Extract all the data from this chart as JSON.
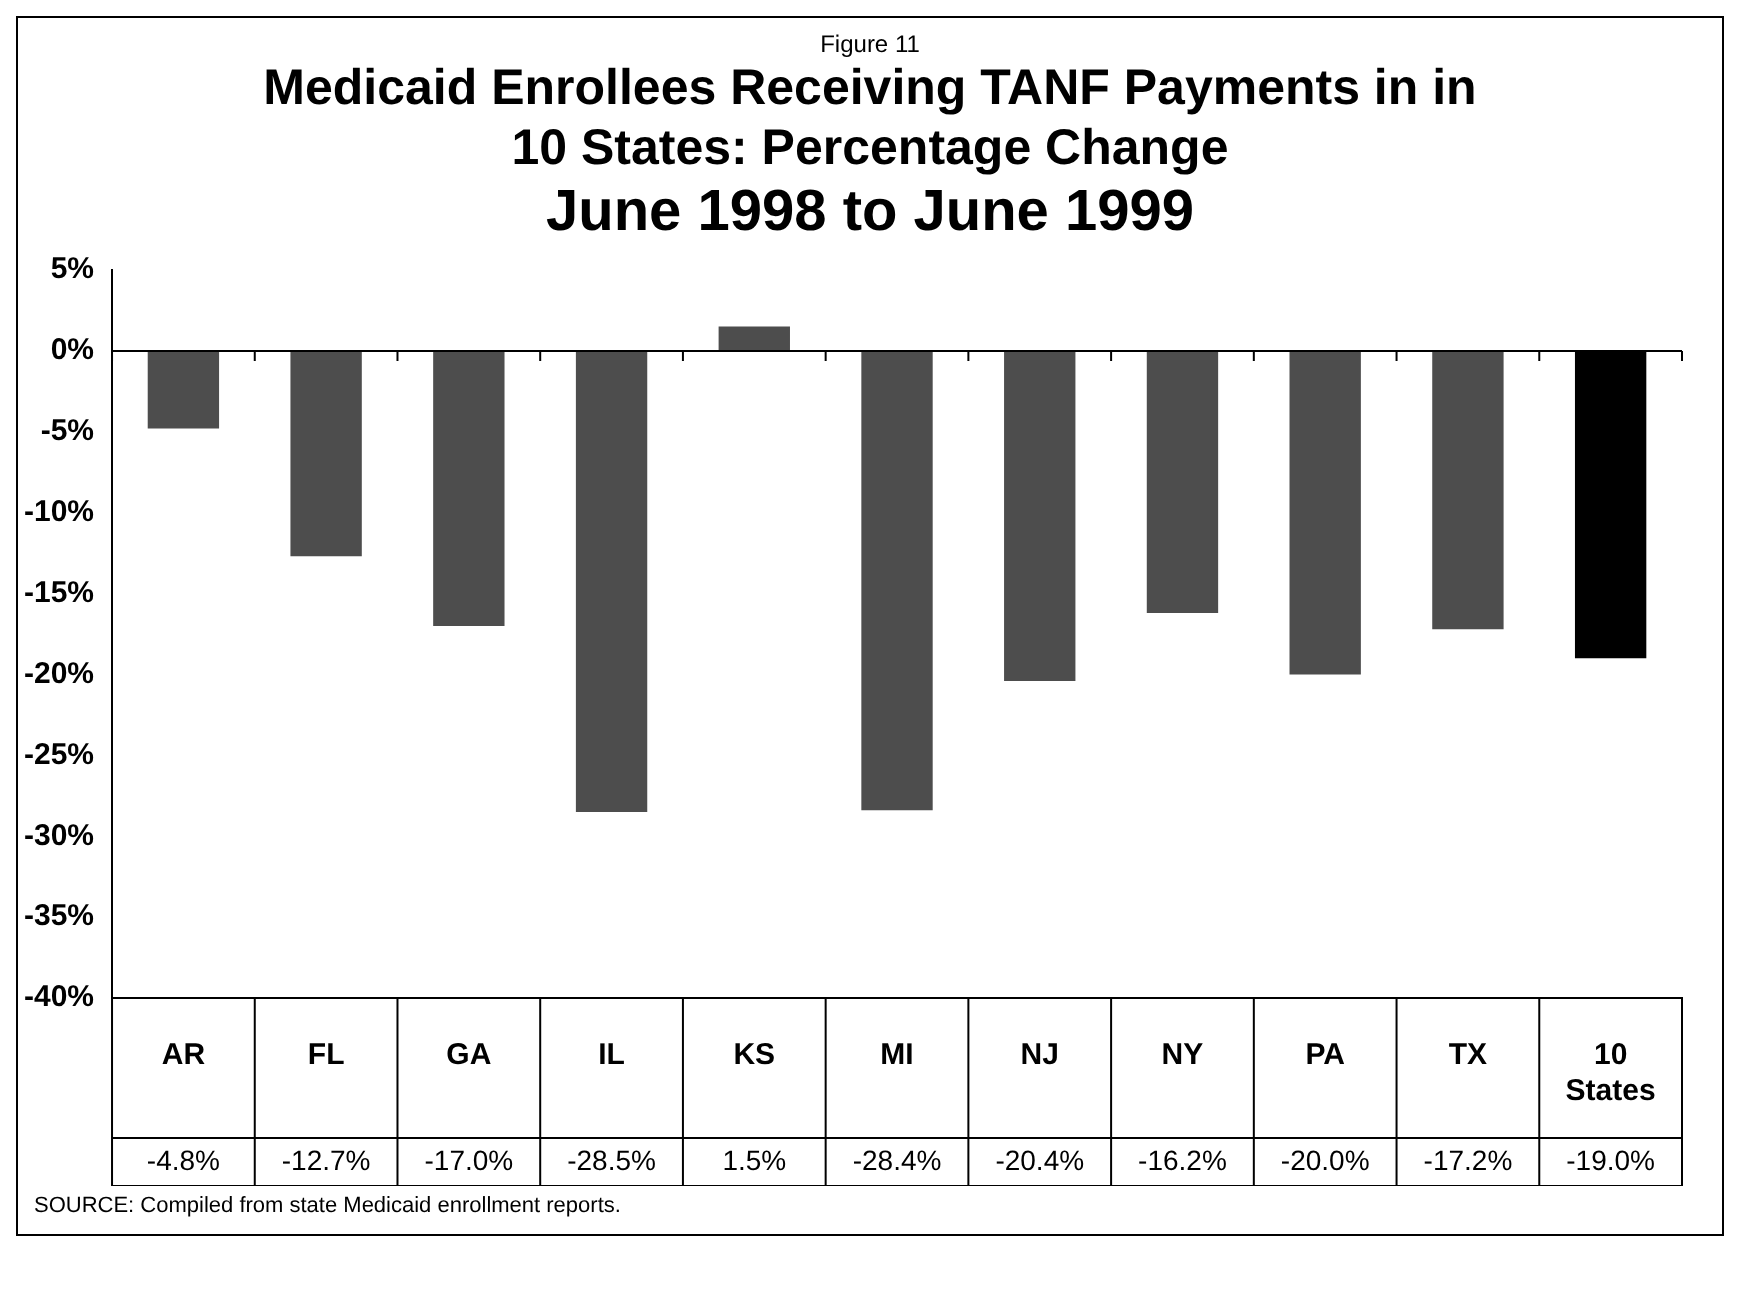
{
  "chart_data": {
    "type": "bar",
    "title": "Medicaid Enrollees Receiving TANF Payments in in 10 States: Percentage Change",
    "subtitle": "June 1998 to June 1999",
    "annotations": [
      "Figure 11",
      "SOURCE: Compiled from state Medicaid enrollment reports."
    ],
    "categories": [
      "AR",
      "FL",
      "GA",
      "IL",
      "KS",
      "MI",
      "NJ",
      "NY",
      "PA",
      "TX",
      "10 States"
    ],
    "values": [
      -4.8,
      -12.7,
      -17.0,
      -28.5,
      1.5,
      -28.4,
      -20.4,
      -16.2,
      -20.0,
      -17.2,
      -19.0
    ],
    "value_labels": [
      "-4.8%",
      "-12.7%",
      "-17.0%",
      "-28.5%",
      "1.5%",
      "-28.4%",
      "-20.4%",
      "-16.2%",
      "-20.0%",
      "-17.2%",
      "-19.0%"
    ],
    "colors": [
      "#4d4d4d",
      "#4d4d4d",
      "#4d4d4d",
      "#4d4d4d",
      "#4d4d4d",
      "#4d4d4d",
      "#4d4d4d",
      "#4d4d4d",
      "#4d4d4d",
      "#4d4d4d",
      "#000000"
    ],
    "ylim": [
      -40,
      5
    ],
    "yticks": [
      {
        "value": 5,
        "label": "5%"
      },
      {
        "value": 0,
        "label": "0%"
      },
      {
        "value": -5,
        "label": "-5%"
      },
      {
        "value": -10,
        "label": "-10%"
      },
      {
        "value": -15,
        "label": "-15%"
      },
      {
        "value": -20,
        "label": "-20%"
      },
      {
        "value": -25,
        "label": "-25%"
      },
      {
        "value": -30,
        "label": "-30%"
      },
      {
        "value": -35,
        "label": "-35%"
      },
      {
        "value": -40,
        "label": "-40%"
      }
    ],
    "ref_lines": [
      {
        "axis": "y",
        "value": 0
      }
    ],
    "legend": false
  }
}
